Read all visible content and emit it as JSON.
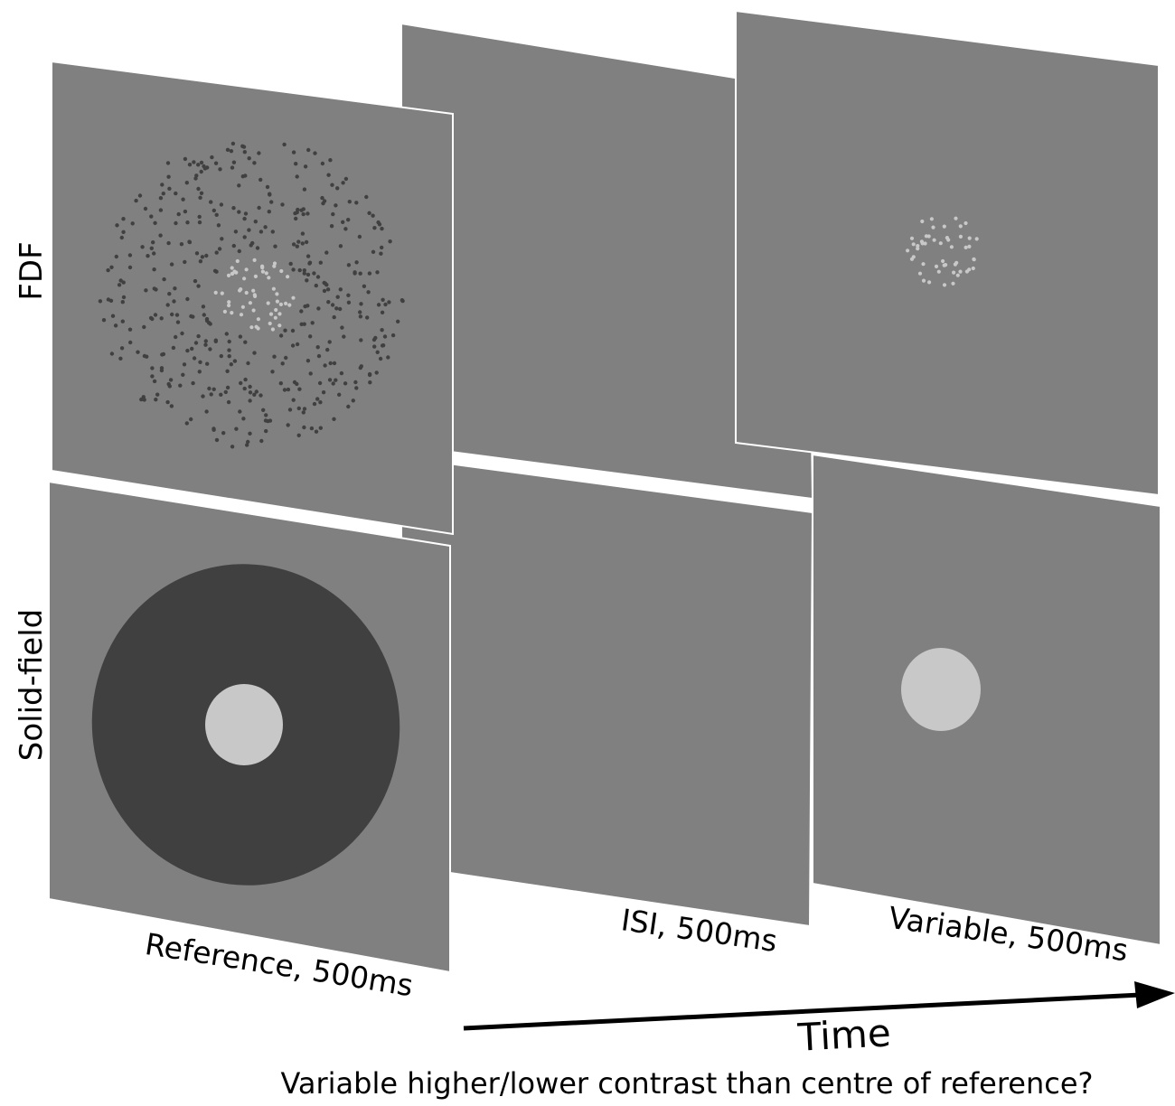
{
  "rows": {
    "fdf": "FDF",
    "solid": "Solid-field"
  },
  "intervals": {
    "reference": "Reference, 500ms",
    "isi": "ISI, 500ms",
    "variable": "Variable, 500ms"
  },
  "axis": {
    "time": "Time"
  },
  "question": "Variable higher/lower contrast than centre of reference?",
  "colors": {
    "panel": "#808080",
    "dark_dots": "#404040",
    "light_dots": "#c8c8c8",
    "annulus": "#404040",
    "centre_disc": "#c8c8c8"
  }
}
